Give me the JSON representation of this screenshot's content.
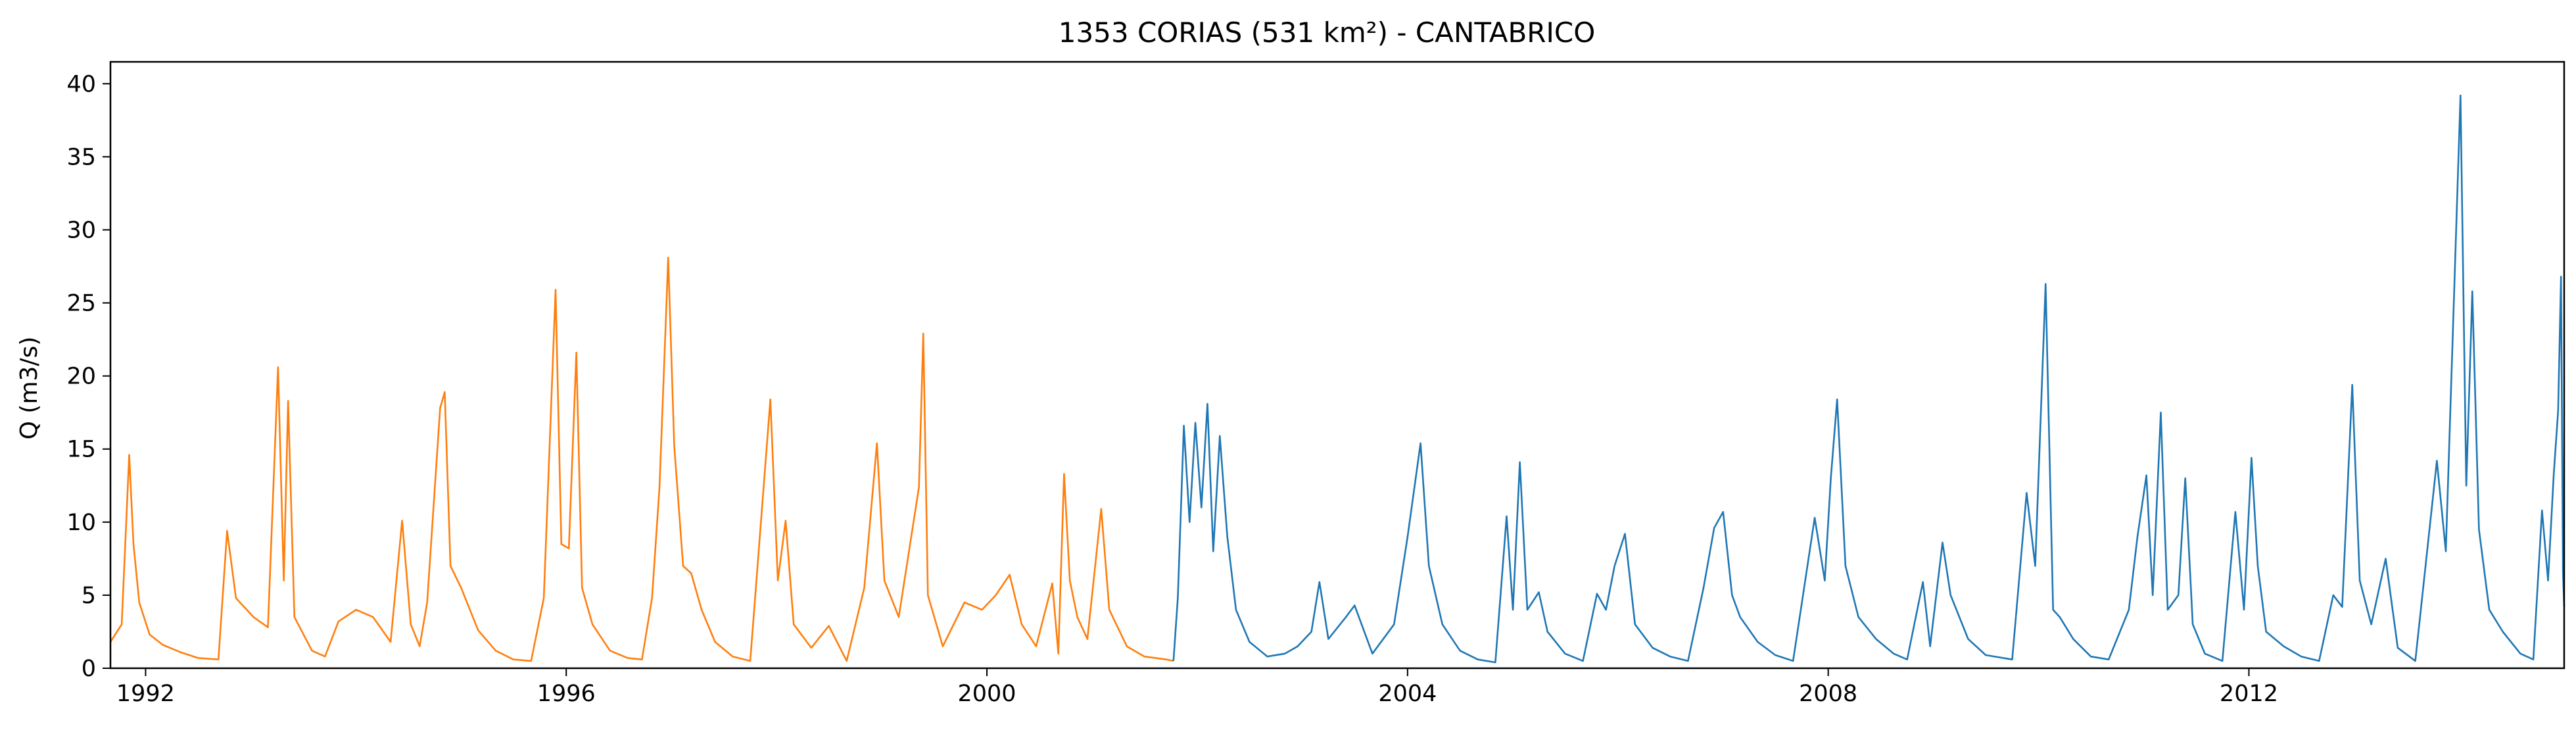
{
  "chart_data": {
    "type": "line",
    "title": "1353 CORIAS (531 km²) - CANTABRICO",
    "xlabel": "",
    "ylabel": "Q (m3/s)",
    "xlim": [
      "1991-09-01",
      "2014-12-31"
    ],
    "ylim": [
      0,
      41.5
    ],
    "x_ticks": [
      "1992",
      "1996",
      "2000",
      "2004",
      "2008",
      "2012"
    ],
    "y_ticks": [
      "0",
      "5",
      "10",
      "15",
      "20",
      "25",
      "30",
      "35",
      "40"
    ],
    "grid": false,
    "legend": "none",
    "series": [
      {
        "color": "#ff7f0e",
        "points": [
          [
            "1991-09-01",
            1.8
          ],
          [
            "1991-10-10",
            3.0
          ],
          [
            "1991-11-05",
            14.6
          ],
          [
            "1991-11-20",
            8.5
          ],
          [
            "1991-12-10",
            4.5
          ],
          [
            "1992-01-15",
            2.3
          ],
          [
            "1992-03-01",
            1.6
          ],
          [
            "1992-05-01",
            1.1
          ],
          [
            "1992-07-01",
            0.7
          ],
          [
            "1992-09-10",
            0.6
          ],
          [
            "1992-10-10",
            9.4
          ],
          [
            "1992-11-10",
            4.8
          ],
          [
            "1993-01-10",
            3.5
          ],
          [
            "1993-03-01",
            2.8
          ],
          [
            "1993-04-05",
            20.6
          ],
          [
            "1993-04-25",
            6.0
          ],
          [
            "1993-05-10",
            18.3
          ],
          [
            "1993-06-01",
            3.5
          ],
          [
            "1993-08-01",
            1.2
          ],
          [
            "1993-09-15",
            0.8
          ],
          [
            "1993-11-01",
            3.2
          ],
          [
            "1994-01-01",
            4.0
          ],
          [
            "1994-03-01",
            3.5
          ],
          [
            "1994-05-01",
            1.8
          ],
          [
            "1994-06-10",
            10.1
          ],
          [
            "1994-07-10",
            3.0
          ],
          [
            "1994-08-10",
            1.5
          ],
          [
            "1994-09-05",
            4.5
          ],
          [
            "1994-10-20",
            17.8
          ],
          [
            "1994-11-05",
            18.9
          ],
          [
            "1994-11-25",
            7.0
          ],
          [
            "1995-01-01",
            5.5
          ],
          [
            "1995-03-01",
            2.6
          ],
          [
            "1995-05-01",
            1.2
          ],
          [
            "1995-07-01",
            0.6
          ],
          [
            "1995-09-01",
            0.5
          ],
          [
            "1995-10-15",
            4.8
          ],
          [
            "1995-11-25",
            25.9
          ],
          [
            "1995-12-15",
            8.5
          ],
          [
            "1996-01-10",
            8.2
          ],
          [
            "1996-02-05",
            21.6
          ],
          [
            "1996-02-25",
            5.5
          ],
          [
            "1996-04-01",
            3.0
          ],
          [
            "1996-06-01",
            1.2
          ],
          [
            "1996-08-01",
            0.7
          ],
          [
            "1996-09-20",
            0.6
          ],
          [
            "1996-10-25",
            4.8
          ],
          [
            "1996-11-20",
            12.4
          ],
          [
            "1996-12-20",
            28.1
          ],
          [
            "1997-01-10",
            15.2
          ],
          [
            "1997-02-10",
            7.0
          ],
          [
            "1997-03-10",
            6.5
          ],
          [
            "1997-04-15",
            4.0
          ],
          [
            "1997-06-01",
            1.8
          ],
          [
            "1997-08-01",
            0.8
          ],
          [
            "1997-10-01",
            0.5
          ],
          [
            "1997-12-10",
            18.4
          ],
          [
            "1998-01-05",
            6.0
          ],
          [
            "1998-02-01",
            10.1
          ],
          [
            "1998-03-01",
            3.0
          ],
          [
            "1998-05-01",
            1.4
          ],
          [
            "1998-07-01",
            2.9
          ],
          [
            "1998-09-01",
            0.5
          ],
          [
            "1998-11-01",
            5.5
          ],
          [
            "1998-12-15",
            15.4
          ],
          [
            "1999-01-10",
            6.0
          ],
          [
            "1999-03-01",
            3.5
          ],
          [
            "1999-05-10",
            12.4
          ],
          [
            "1999-05-25",
            22.9
          ],
          [
            "1999-06-10",
            5.0
          ],
          [
            "1999-08-01",
            1.5
          ],
          [
            "1999-10-15",
            4.5
          ],
          [
            "1999-12-15",
            4.0
          ],
          [
            "2000-02-01",
            5.0
          ],
          [
            "2000-03-20",
            6.4
          ],
          [
            "2000-05-01",
            3.0
          ],
          [
            "2000-06-20",
            1.5
          ],
          [
            "2000-08-15",
            5.8
          ],
          [
            "2000-09-05",
            1.0
          ],
          [
            "2000-09-25",
            13.3
          ],
          [
            "2000-10-15",
            6.0
          ],
          [
            "2000-11-10",
            3.5
          ],
          [
            "2000-12-15",
            2.0
          ],
          [
            "2001-02-01",
            10.9
          ],
          [
            "2001-03-01",
            4.0
          ],
          [
            "2001-05-01",
            1.5
          ],
          [
            "2001-07-01",
            0.8
          ],
          [
            "2001-09-15",
            0.6
          ],
          [
            "2001-10-10",
            0.5
          ]
        ]
      },
      {
        "color": "#1f77b4",
        "points": [
          [
            "2001-10-10",
            0.5
          ],
          [
            "2001-10-25",
            4.8
          ],
          [
            "2001-11-15",
            16.6
          ],
          [
            "2001-12-05",
            10.0
          ],
          [
            "2001-12-25",
            16.8
          ],
          [
            "2002-01-15",
            11.0
          ],
          [
            "2002-02-05",
            18.1
          ],
          [
            "2002-02-25",
            8.0
          ],
          [
            "2002-03-20",
            15.9
          ],
          [
            "2002-04-15",
            9.0
          ],
          [
            "2002-05-15",
            4.0
          ],
          [
            "2002-07-01",
            1.8
          ],
          [
            "2002-09-01",
            0.8
          ],
          [
            "2002-11-01",
            1.0
          ],
          [
            "2002-12-15",
            1.5
          ],
          [
            "2003-02-01",
            2.5
          ],
          [
            "2003-03-01",
            5.9
          ],
          [
            "2003-04-01",
            2.0
          ],
          [
            "2003-06-01",
            3.5
          ],
          [
            "2003-07-01",
            4.3
          ],
          [
            "2003-09-01",
            1.0
          ],
          [
            "2003-11-15",
            3.0
          ],
          [
            "2004-01-01",
            9.0
          ],
          [
            "2004-02-15",
            15.4
          ],
          [
            "2004-03-15",
            7.0
          ],
          [
            "2004-05-01",
            3.0
          ],
          [
            "2004-07-01",
            1.2
          ],
          [
            "2004-09-01",
            0.6
          ],
          [
            "2004-11-01",
            0.4
          ],
          [
            "2004-12-10",
            10.4
          ],
          [
            "2005-01-01",
            4.0
          ],
          [
            "2005-01-25",
            14.1
          ],
          [
            "2005-02-20",
            4.0
          ],
          [
            "2005-04-01",
            5.2
          ],
          [
            "2005-05-01",
            2.5
          ],
          [
            "2005-07-01",
            1.0
          ],
          [
            "2005-09-01",
            0.5
          ],
          [
            "2005-10-20",
            5.1
          ],
          [
            "2005-11-20",
            4.0
          ],
          [
            "2005-12-20",
            7.0
          ],
          [
            "2006-01-25",
            9.2
          ],
          [
            "2006-03-01",
            3.0
          ],
          [
            "2006-05-01",
            1.4
          ],
          [
            "2006-07-01",
            0.8
          ],
          [
            "2006-09-01",
            0.5
          ],
          [
            "2006-10-25",
            5.5
          ],
          [
            "2006-12-01",
            9.6
          ],
          [
            "2007-01-01",
            10.7
          ],
          [
            "2007-02-01",
            5.0
          ],
          [
            "2007-03-01",
            3.5
          ],
          [
            "2007-05-01",
            1.8
          ],
          [
            "2007-07-01",
            0.9
          ],
          [
            "2007-09-01",
            0.5
          ],
          [
            "2007-11-15",
            10.3
          ],
          [
            "2007-12-20",
            6.0
          ],
          [
            "2008-01-10",
            13.0
          ],
          [
            "2008-02-01",
            18.4
          ],
          [
            "2008-03-01",
            7.0
          ],
          [
            "2008-04-15",
            3.5
          ],
          [
            "2008-06-15",
            2.0
          ],
          [
            "2008-08-15",
            1.0
          ],
          [
            "2008-10-01",
            0.6
          ],
          [
            "2008-11-25",
            5.9
          ],
          [
            "2008-12-20",
            1.5
          ],
          [
            "2009-02-01",
            8.6
          ],
          [
            "2009-03-01",
            5.0
          ],
          [
            "2009-05-01",
            2.0
          ],
          [
            "2009-07-01",
            0.9
          ],
          [
            "2009-10-01",
            0.6
          ],
          [
            "2009-11-20",
            12.0
          ],
          [
            "2009-12-20",
            7.0
          ],
          [
            "2010-01-25",
            26.3
          ],
          [
            "2010-02-20",
            4.0
          ],
          [
            "2010-03-15",
            3.5
          ],
          [
            "2010-05-01",
            2.0
          ],
          [
            "2010-07-01",
            0.8
          ],
          [
            "2010-09-01",
            0.6
          ],
          [
            "2010-11-10",
            4.0
          ],
          [
            "2010-12-10",
            9.0
          ],
          [
            "2011-01-10",
            13.2
          ],
          [
            "2011-02-01",
            5.0
          ],
          [
            "2011-03-01",
            17.5
          ],
          [
            "2011-03-25",
            4.0
          ],
          [
            "2011-05-01",
            5.0
          ],
          [
            "2011-05-25",
            13.0
          ],
          [
            "2011-06-20",
            3.0
          ],
          [
            "2011-08-01",
            1.0
          ],
          [
            "2011-10-01",
            0.5
          ],
          [
            "2011-11-15",
            10.7
          ],
          [
            "2011-12-15",
            4.0
          ],
          [
            "2012-01-10",
            14.4
          ],
          [
            "2012-02-01",
            7.0
          ],
          [
            "2012-03-01",
            2.5
          ],
          [
            "2012-05-01",
            1.5
          ],
          [
            "2012-07-01",
            0.8
          ],
          [
            "2012-09-01",
            0.5
          ],
          [
            "2012-10-20",
            5.0
          ],
          [
            "2012-11-20",
            4.2
          ],
          [
            "2012-12-25",
            19.4
          ],
          [
            "2013-01-20",
            6.0
          ],
          [
            "2013-03-01",
            3.0
          ],
          [
            "2013-04-20",
            7.5
          ],
          [
            "2013-06-01",
            1.4
          ],
          [
            "2013-08-01",
            0.5
          ],
          [
            "2013-10-15",
            14.2
          ],
          [
            "2013-11-15",
            8.0
          ],
          [
            "2014-01-05",
            39.2
          ],
          [
            "2014-01-25",
            12.5
          ],
          [
            "2014-02-15",
            25.8
          ],
          [
            "2014-03-10",
            9.5
          ],
          [
            "2014-04-15",
            4.0
          ],
          [
            "2014-06-01",
            2.5
          ],
          [
            "2014-08-01",
            1.0
          ],
          [
            "2014-09-15",
            0.6
          ],
          [
            "2014-10-15",
            10.8
          ],
          [
            "2014-11-05",
            6.0
          ],
          [
            "2014-11-25",
            13.3
          ],
          [
            "2014-12-10",
            17.6
          ],
          [
            "2014-12-20",
            26.8
          ],
          [
            "2014-12-27",
            6.5
          ],
          [
            "2014-12-31",
            4.2
          ]
        ]
      }
    ]
  }
}
